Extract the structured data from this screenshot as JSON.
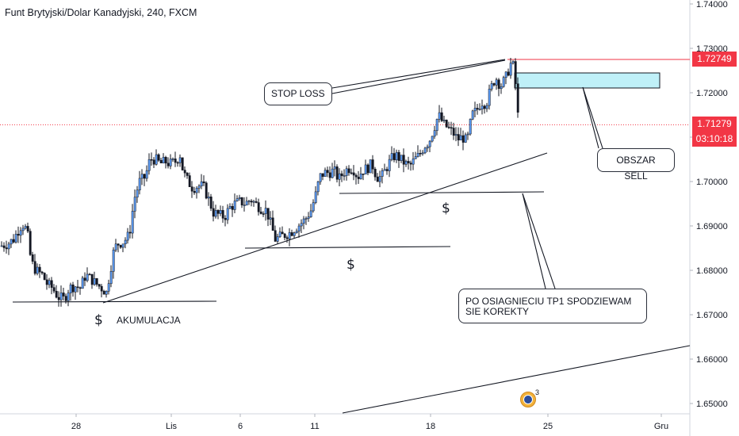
{
  "header": {
    "title": "Funt Brytyjski/Dolar Kanadyjski, 240, FXCM"
  },
  "price_tags": {
    "stop": {
      "value": "1.72749",
      "color": "#f23645"
    },
    "current": {
      "value": "1.71279",
      "color": "#f23645"
    },
    "countdown": {
      "value": "03:10:18",
      "color": "#f23645"
    }
  },
  "annotations": {
    "stop_loss": "STOP LOSS",
    "obszar_sell": "OBSZAR SELL",
    "korekta": "PO OSIAGNIECIU TP1 SPODZIEWAM SIE KOREKTY",
    "akumulacja": "AKUMULACJA",
    "dollar": "$"
  },
  "colors": {
    "up": "#5b9cf6",
    "down": "#131722",
    "sell_zone": "#bff0f8",
    "stop_line": "#f23645"
  },
  "badge": {
    "icon": "uk-flag-icon",
    "count": "3"
  },
  "chart_data": {
    "type": "candlestick",
    "title": "Funt Brytyjski/Dolar Kanadyjski, 240, FXCM",
    "xlabel": "",
    "ylabel": "",
    "ylim": [
      1.645,
      1.742
    ],
    "y_ticks": [
      "1.74000",
      "1.73000",
      "1.72000",
      "1.71000",
      "1.70000",
      "1.69000",
      "1.68000",
      "1.67000",
      "1.66000",
      "1.65000"
    ],
    "x_ticks": [
      "28",
      "Lis",
      "6",
      "11",
      "18",
      "25",
      "Gru"
    ],
    "grid": false,
    "close_path": [
      [
        0,
        1.6855
      ],
      [
        9,
        1.686
      ],
      [
        16,
        1.687
      ],
      [
        22,
        1.689
      ],
      [
        27,
        1.6905
      ],
      [
        33,
        1.689
      ],
      [
        38,
        1.682
      ],
      [
        44,
        1.68
      ],
      [
        52,
        1.679
      ],
      [
        58,
        1.677
      ],
      [
        65,
        1.676
      ],
      [
        72,
        1.674
      ],
      [
        80,
        1.6735
      ],
      [
        86,
        1.676
      ],
      [
        93,
        1.6765
      ],
      [
        100,
        1.676
      ],
      [
        107,
        1.679
      ],
      [
        114,
        1.678
      ],
      [
        120,
        1.677
      ],
      [
        127,
        1.676
      ],
      [
        133,
        1.675
      ],
      [
        138,
        1.68
      ],
      [
        143,
        1.685
      ],
      [
        148,
        1.686
      ],
      [
        155,
        1.6865
      ],
      [
        162,
        1.688
      ],
      [
        168,
        1.696
      ],
      [
        175,
        1.7
      ],
      [
        182,
        1.701
      ],
      [
        188,
        1.705
      ],
      [
        195,
        1.705
      ],
      [
        201,
        1.704
      ],
      [
        207,
        1.7045
      ],
      [
        213,
        1.704
      ],
      [
        220,
        1.7045
      ],
      [
        226,
        1.706
      ],
      [
        230,
        1.702
      ],
      [
        236,
        1.7
      ],
      [
        242,
        1.6985
      ],
      [
        248,
        1.699
      ],
      [
        255,
        1.699
      ],
      [
        262,
        1.696
      ],
      [
        268,
        1.693
      ],
      [
        275,
        1.6925
      ],
      [
        282,
        1.692
      ],
      [
        288,
        1.694
      ],
      [
        295,
        1.695
      ],
      [
        302,
        1.6955
      ],
      [
        308,
        1.695
      ],
      [
        315,
        1.696
      ],
      [
        321,
        1.695
      ],
      [
        328,
        1.694
      ],
      [
        335,
        1.6935
      ],
      [
        341,
        1.69
      ],
      [
        346,
        1.687
      ],
      [
        352,
        1.6875
      ],
      [
        358,
        1.688
      ],
      [
        365,
        1.6885
      ],
      [
        371,
        1.6895
      ],
      [
        378,
        1.6905
      ],
      [
        384,
        1.6915
      ],
      [
        391,
        1.6935
      ],
      [
        397,
        1.697
      ],
      [
        402,
        1.701
      ],
      [
        408,
        1.702
      ],
      [
        414,
        1.702
      ],
      [
        420,
        1.7025
      ],
      [
        426,
        1.7005
      ],
      [
        432,
        1.702
      ],
      [
        438,
        1.703
      ],
      [
        444,
        1.703
      ],
      [
        450,
        1.701
      ],
      [
        456,
        1.7025
      ],
      [
        462,
        1.703
      ],
      [
        468,
        1.704
      ],
      [
        474,
        1.701
      ],
      [
        480,
        1.701
      ],
      [
        486,
        1.703
      ],
      [
        492,
        1.705
      ],
      [
        498,
        1.706
      ],
      [
        504,
        1.705
      ],
      [
        510,
        1.704
      ],
      [
        516,
        1.7035
      ],
      [
        522,
        1.705
      ],
      [
        528,
        1.706
      ],
      [
        534,
        1.708
      ],
      [
        540,
        1.709
      ],
      [
        546,
        1.712
      ],
      [
        552,
        1.715
      ],
      [
        558,
        1.713
      ],
      [
        564,
        1.712
      ],
      [
        570,
        1.711
      ],
      [
        576,
        1.7095
      ],
      [
        582,
        1.71
      ],
      [
        588,
        1.709
      ],
      [
        594,
        1.715
      ],
      [
        600,
        1.716
      ],
      [
        606,
        1.718
      ],
      [
        612,
        1.7175
      ],
      [
        618,
        1.721
      ],
      [
        624,
        1.7235
      ],
      [
        630,
        1.7215
      ],
      [
        636,
        1.723
      ],
      [
        640,
        1.725
      ],
      [
        644,
        1.727
      ],
      [
        647,
        1.7255
      ],
      [
        649,
        1.722
      ],
      [
        651,
        1.716
      ],
      [
        654,
        1.7128
      ]
    ]
  }
}
